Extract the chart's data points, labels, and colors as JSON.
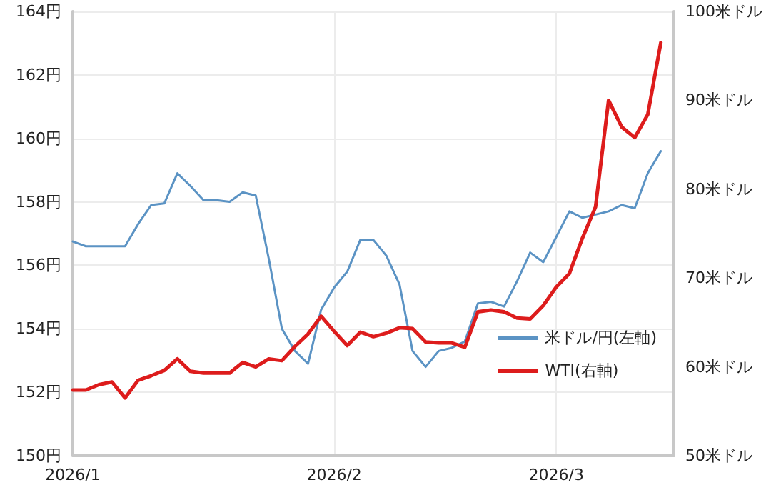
{
  "chart_data": {
    "type": "line",
    "categories": [
      "2026/1",
      null,
      null,
      null,
      null,
      null,
      null,
      null,
      null,
      null,
      null,
      null,
      null,
      null,
      null,
      null,
      null,
      null,
      null,
      null,
      "2026/2",
      null,
      null,
      null,
      null,
      null,
      null,
      null,
      null,
      null,
      null,
      null,
      null,
      null,
      null,
      null,
      null,
      "2026/3",
      null,
      null,
      null,
      null,
      null,
      null,
      null,
      null,
      null
    ],
    "series": [
      {
        "name": "米ドル/円(左軸)",
        "color": "#5b93c4",
        "values": [
          156.75,
          156.6,
          156.6,
          156.6,
          156.6,
          157.3,
          157.9,
          157.95,
          158.9,
          158.5,
          158.05,
          158.05,
          158.0,
          158.3,
          158.2,
          156.2,
          154.0,
          153.3,
          152.9,
          154.6,
          155.3,
          155.8,
          156.8,
          156.8,
          156.3,
          155.4,
          153.3,
          152.8,
          153.3,
          153.4,
          153.6,
          154.8,
          154.85,
          154.7,
          155.5,
          156.4,
          156.1,
          156.9,
          157.7,
          157.5,
          157.6,
          157.7,
          157.9,
          157.8,
          158.9,
          159.6,
          null
        ]
      },
      {
        "name": "WTI(右軸)",
        "color": "#dd1c1c",
        "axis": "y2",
        "values": [
          57.4,
          57.4,
          58.0,
          58.3,
          56.5,
          58.5,
          59.0,
          59.6,
          60.9,
          59.5,
          59.3,
          59.3,
          59.3,
          60.5,
          60.0,
          60.9,
          60.7,
          62.3,
          63.7,
          65.7,
          64.0,
          62.4,
          63.9,
          63.4,
          63.8,
          64.4,
          64.3,
          62.8,
          62.7,
          62.7,
          62.2,
          66.2,
          66.4,
          66.2,
          65.5,
          65.4,
          66.9,
          69.0,
          70.5,
          74.5,
          78.0,
          90.0,
          87.0,
          85.8,
          88.4,
          96.5,
          null
        ]
      }
    ],
    "ylim": [
      150,
      164
    ],
    "yticks": [
      {
        "value": 150,
        "label": "150円"
      },
      {
        "value": 152,
        "label": "152円"
      },
      {
        "value": 154,
        "label": "154円"
      },
      {
        "value": 156,
        "label": "156円"
      },
      {
        "value": 158,
        "label": "158円"
      },
      {
        "value": 160,
        "label": "160円"
      },
      {
        "value": 162,
        "label": "162円"
      },
      {
        "value": 164,
        "label": "164円"
      }
    ],
    "y2lim": [
      50,
      100
    ],
    "y2ticks": [
      {
        "value": 50,
        "label": "50米ドル"
      },
      {
        "value": 60,
        "label": "60米ドル"
      },
      {
        "value": 70,
        "label": "70米ドル"
      },
      {
        "value": 80,
        "label": "80米ドル"
      },
      {
        "value": 90,
        "label": "90米ドル"
      },
      {
        "value": 100,
        "label": "100米ドル"
      }
    ],
    "grid": true,
    "legend": "bottom right",
    "marker": "none",
    "line_style": "solid"
  }
}
